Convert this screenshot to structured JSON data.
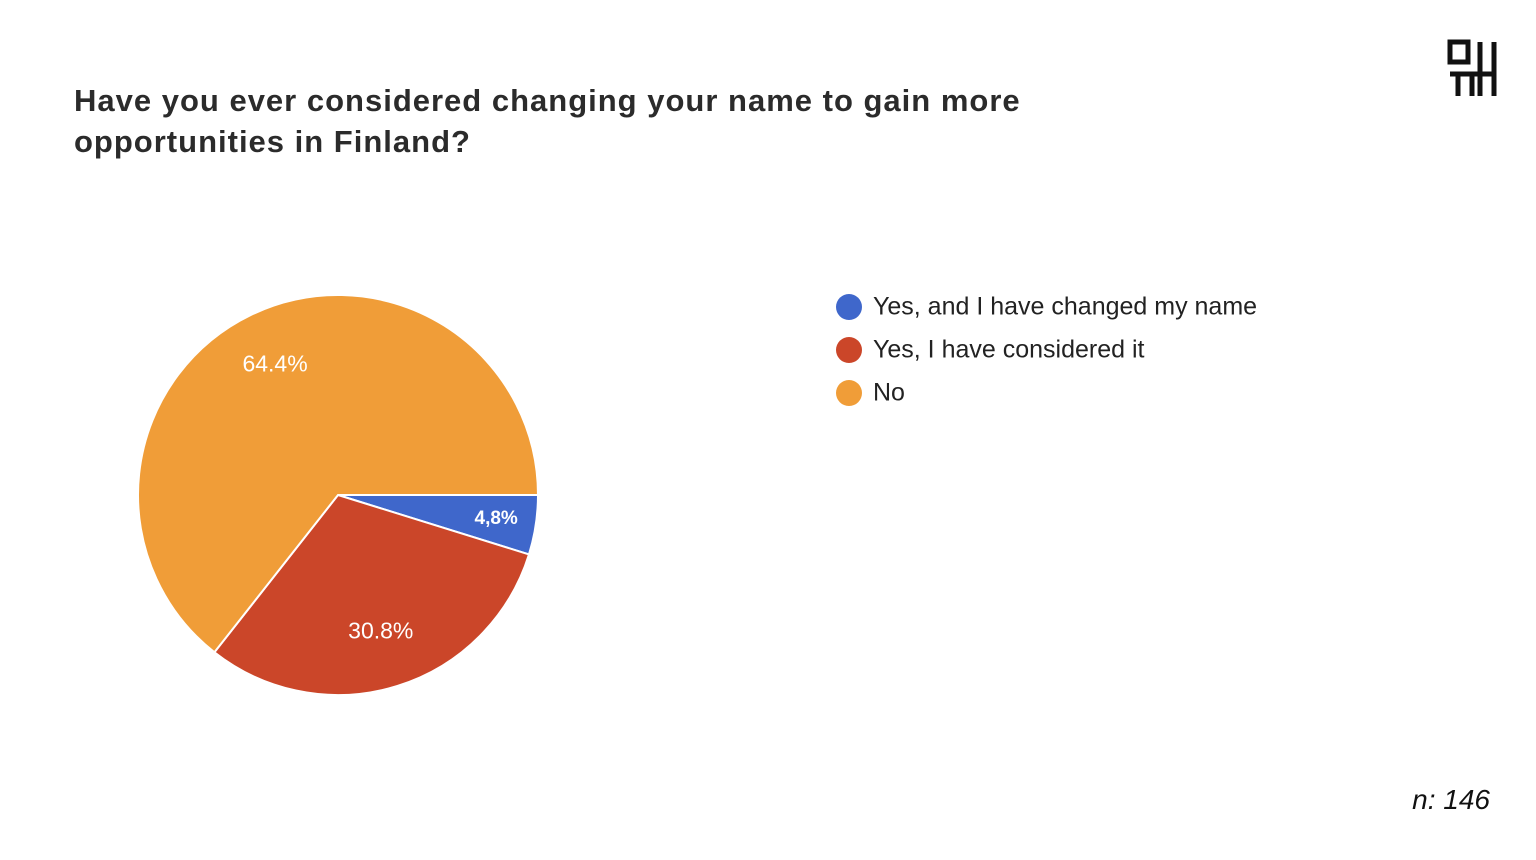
{
  "chart_data": {
    "type": "pie",
    "title": "Have you ever considered changing your name to gain more opportunities in Finland?",
    "categories": [
      "Yes, and I have changed my name",
      "Yes, I have considered it",
      "No"
    ],
    "values": [
      4.8,
      30.8,
      64.4
    ],
    "value_labels": [
      "4,8%",
      "30.8%",
      "64.4%"
    ],
    "colors": [
      "#3f67cb",
      "#cb4629",
      "#f09d38"
    ],
    "note": "n: 146"
  }
}
